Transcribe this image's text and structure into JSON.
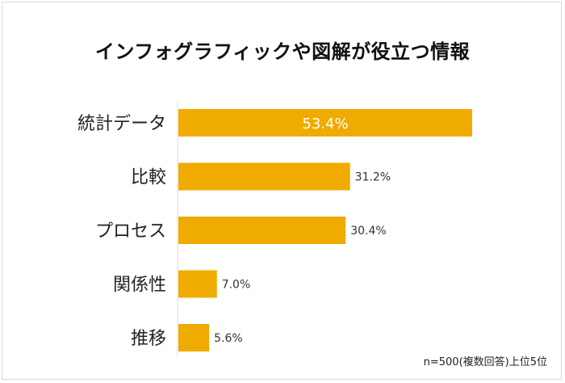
{
  "chart_data": {
    "type": "bar",
    "orientation": "horizontal",
    "title": "インフォグラフィックや図解が役立つ情報",
    "categories": [
      "統計データ",
      "比較",
      "プロセス",
      "関係性",
      "推移"
    ],
    "values": [
      53.4,
      31.2,
      30.4,
      7.0,
      5.6
    ],
    "value_labels": [
      "53.4%",
      "31.2%",
      "30.4%",
      "7.0%",
      "5.6%"
    ],
    "xlim": [
      0,
      60
    ],
    "grid": false,
    "bar_color": "#F0AB00",
    "note": "n=500(複数回答)上位5位"
  }
}
